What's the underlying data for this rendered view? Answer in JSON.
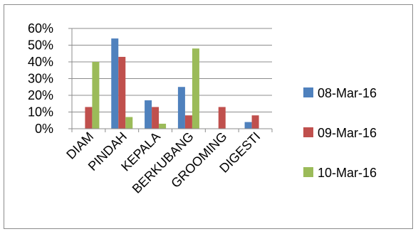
{
  "chart_data": {
    "type": "bar",
    "categories": [
      "DIAM",
      "PINDAH",
      "KEPALA",
      "BERKUBANG",
      "GROOMING",
      "DIGESTI"
    ],
    "series": [
      {
        "name": "08-Mar-16",
        "color": "#4f81bd",
        "values": [
          0,
          54,
          17,
          25,
          0,
          4
        ]
      },
      {
        "name": "09-Mar-16",
        "color": "#c0504d",
        "values": [
          13,
          43,
          13,
          8,
          13,
          8
        ]
      },
      {
        "name": "10-Mar-16",
        "color": "#9bbb59",
        "values": [
          40,
          7,
          3,
          48,
          0,
          0
        ]
      }
    ],
    "y_ticks": [
      "0%",
      "10%",
      "20%",
      "30%",
      "40%",
      "50%",
      "60%"
    ],
    "ylim": [
      0,
      60
    ],
    "value_unit": "percent",
    "grid": true,
    "legend_position": "right"
  }
}
